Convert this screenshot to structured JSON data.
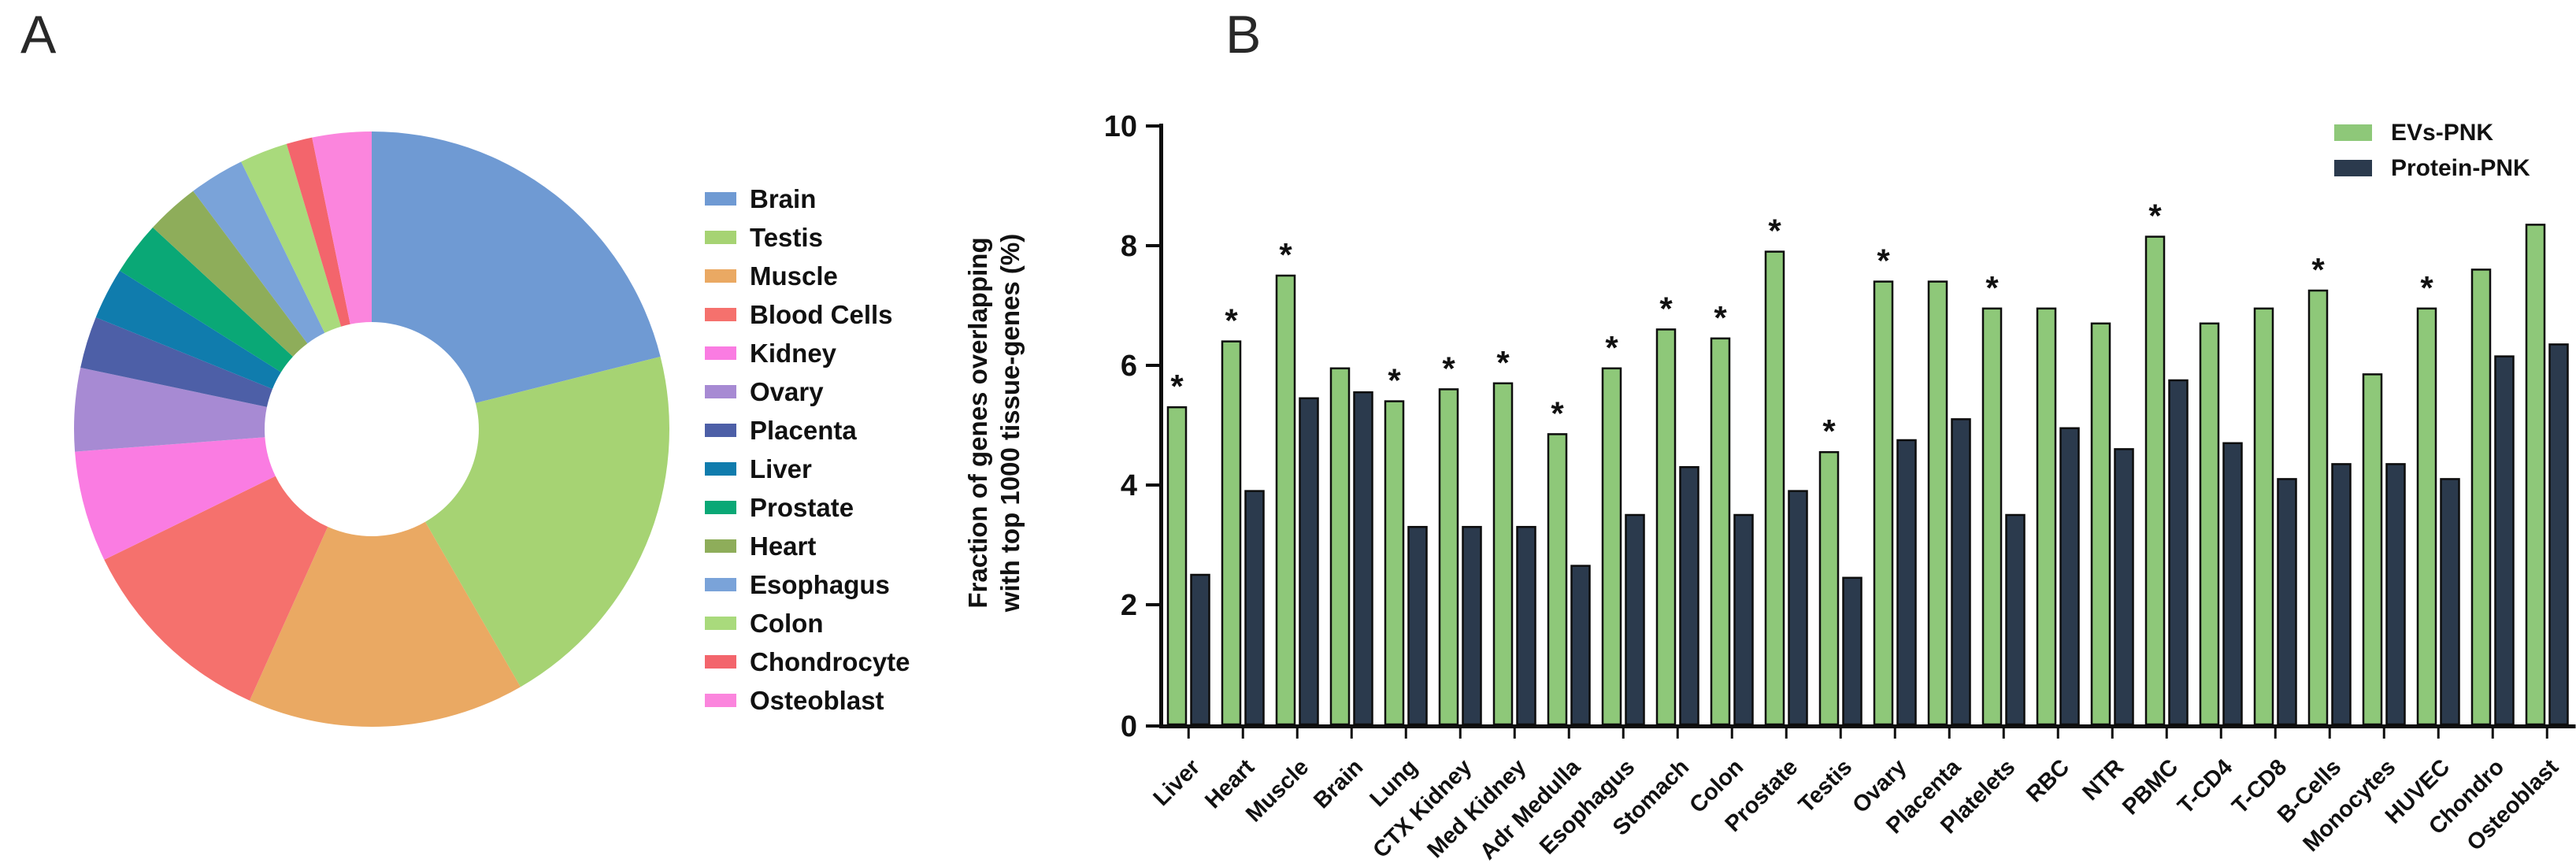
{
  "panels": {
    "a": "A",
    "b": "B"
  },
  "chart_data": [
    {
      "type": "pie",
      "subtype": "donut",
      "title": "",
      "legend_position": "right",
      "categories": [
        "Brain",
        "Testis",
        "Muscle",
        "Blood Cells",
        "Kidney",
        "Ovary",
        "Placenta",
        "Liver",
        "Prostate",
        "Heart",
        "Esophagus",
        "Colon",
        "Chondrocyte",
        "Osteoblast"
      ],
      "values": [
        21,
        20.5,
        15,
        11,
        6,
        4.5,
        2.8,
        2.8,
        2.9,
        2.9,
        3,
        2.6,
        1.4,
        3.2
      ],
      "colors": [
        "#6f9ad3",
        "#a6d373",
        "#eaa963",
        "#f5716d",
        "#fa7ce2",
        "#a78ad3",
        "#4d5fa7",
        "#107cad",
        "#0aa876",
        "#8ead5a",
        "#7aa3d9",
        "#a9da7c",
        "#f3656c",
        "#fb85dd"
      ]
    },
    {
      "type": "bar",
      "title": "",
      "ylabel_lines": [
        "Fraction of genes overlapping",
        "with top 1000 tissue-genes (%)"
      ],
      "ylim": [
        0,
        10
      ],
      "yticks": [
        0,
        2,
        4,
        6,
        8,
        10
      ],
      "grid": false,
      "legend_position": "top-right",
      "significance_marker": "*",
      "categories": [
        "Liver",
        "Heart",
        "Muscle",
        "Brain",
        "Lung",
        "CTX Kidney",
        "Med Kidney",
        "Adr Medulla",
        "Esophagus",
        "Stomach",
        "Colon",
        "Prostate",
        "Testis",
        "Ovary",
        "Placenta",
        "Platelets",
        "RBC",
        "NTR",
        "PBMC",
        "T-CD4",
        "T-CD8",
        "B-Cells",
        "Monocytes",
        "HUVEC",
        "Chondro",
        "Osteoblast"
      ],
      "series": [
        {
          "name": "EVs-PNK",
          "color": "#8ec879",
          "values": [
            5.3,
            6.4,
            7.5,
            5.95,
            5.4,
            5.6,
            5.7,
            4.85,
            5.95,
            6.6,
            6.45,
            7.9,
            4.55,
            7.4,
            7.4,
            6.95,
            6.95,
            6.7,
            8.15,
            6.7,
            6.95,
            7.25,
            5.85,
            6.95,
            7.6,
            8.35
          ]
        },
        {
          "name": "Protein-PNK",
          "color": "#2b3a4d",
          "values": [
            2.5,
            3.9,
            5.45,
            5.55,
            3.3,
            3.3,
            3.3,
            2.65,
            3.5,
            4.3,
            3.5,
            3.9,
            2.45,
            4.75,
            5.1,
            3.5,
            4.95,
            4.6,
            5.75,
            4.7,
            4.1,
            4.35,
            4.35,
            4.1,
            6.15,
            6.35
          ]
        }
      ],
      "significance": [
        1,
        1,
        1,
        0,
        1,
        1,
        1,
        1,
        1,
        1,
        1,
        1,
        1,
        1,
        0,
        1,
        0,
        0,
        1,
        0,
        0,
        1,
        0,
        1,
        0,
        0
      ]
    }
  ]
}
